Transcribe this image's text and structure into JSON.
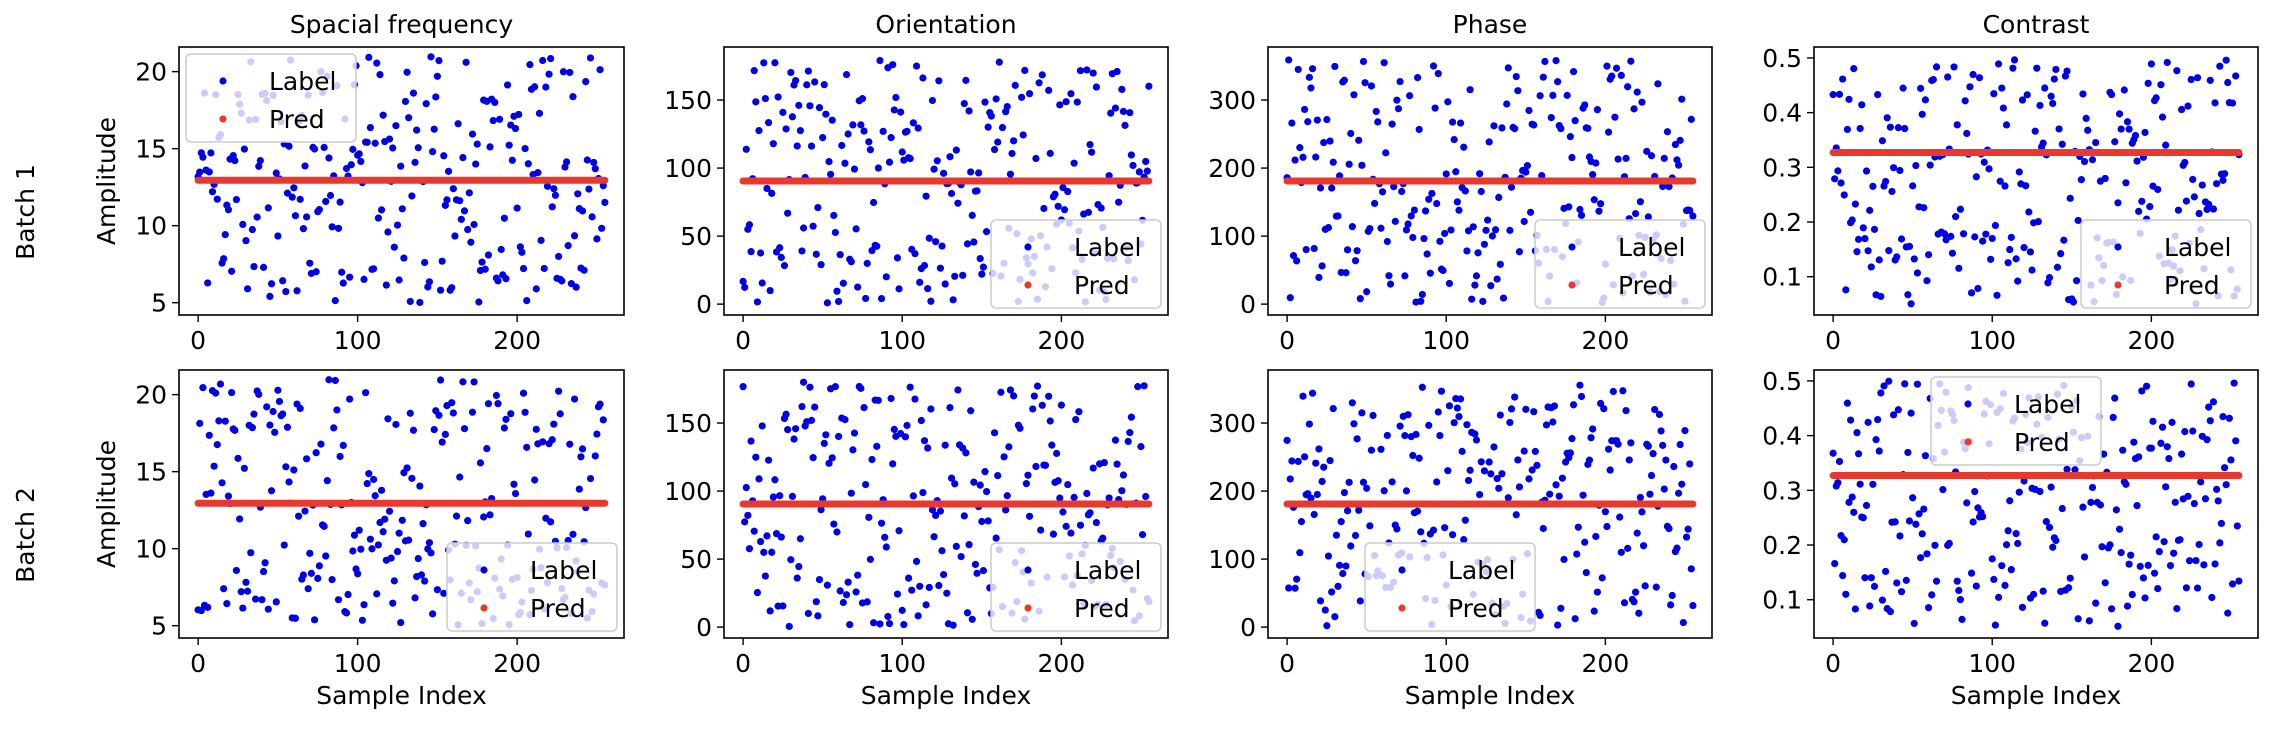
{
  "figure": {
    "row_labels": [
      "Batch 1",
      "Batch 2"
    ],
    "column_titles": [
      "Spacial frequency",
      "Orientation",
      "Phase",
      "Contrast"
    ],
    "legend_labels": [
      "Label",
      "Pred"
    ],
    "colors": {
      "label_points": "#0000e6",
      "pred_line": "#e8392e",
      "axes": "#000000"
    }
  },
  "chart_data": [
    {
      "type": "scatter",
      "row": 1,
      "col": 1,
      "title": "Spacial frequency",
      "xlabel": "",
      "ylabel": "Amplitude",
      "xlim": [
        -12,
        267
      ],
      "ylim": [
        4.2,
        21.6
      ],
      "xticks": [
        0,
        100,
        200
      ],
      "yticks": [
        5,
        10,
        15,
        20
      ],
      "pred": 12.95,
      "legend": "top-left",
      "label_range": [
        5,
        21
      ],
      "seed": 11
    },
    {
      "type": "scatter",
      "row": 1,
      "col": 2,
      "title": "Orientation",
      "xlabel": "",
      "ylabel": "",
      "xlim": [
        -12,
        267
      ],
      "ylim": [
        -8,
        189
      ],
      "xticks": [
        0,
        100,
        200
      ],
      "yticks": [
        0,
        50,
        100,
        150
      ],
      "pred": 90.5,
      "legend": "bottom-right",
      "label_range": [
        0,
        180
      ],
      "seed": 23
    },
    {
      "type": "scatter",
      "row": 1,
      "col": 3,
      "title": "Phase",
      "xlabel": "",
      "ylabel": "",
      "xlim": [
        -12,
        267
      ],
      "ylim": [
        -16,
        378
      ],
      "xticks": [
        0,
        100,
        200
      ],
      "yticks": [
        0,
        100,
        200,
        300
      ],
      "pred": 181,
      "legend": "bottom-right",
      "label_range": [
        0,
        360
      ],
      "seed": 37
    },
    {
      "type": "scatter",
      "row": 1,
      "col": 4,
      "title": "Contrast",
      "xlabel": "",
      "ylabel": "",
      "xlim": [
        -12,
        267
      ],
      "ylim": [
        0.03,
        0.52
      ],
      "xticks": [
        0,
        100,
        200
      ],
      "yticks": [
        0.1,
        0.2,
        0.3,
        0.4,
        0.5
      ],
      "pred": 0.327,
      "legend": "bottom-right",
      "label_range": [
        0.05,
        0.5
      ],
      "seed": 41
    },
    {
      "type": "scatter",
      "row": 2,
      "col": 1,
      "title": "",
      "xlabel": "Sample Index",
      "ylabel": "Amplitude",
      "xlim": [
        -12,
        267
      ],
      "ylim": [
        4.2,
        21.6
      ],
      "xticks": [
        0,
        100,
        200
      ],
      "yticks": [
        5,
        10,
        15,
        20
      ],
      "pred": 12.95,
      "legend": "bottom-right",
      "label_range": [
        5,
        21
      ],
      "seed": 53
    },
    {
      "type": "scatter",
      "row": 2,
      "col": 2,
      "title": "",
      "xlabel": "Sample Index",
      "ylabel": "",
      "xlim": [
        -12,
        267
      ],
      "ylim": [
        -8,
        189
      ],
      "xticks": [
        0,
        100,
        200
      ],
      "yticks": [
        0,
        50,
        100,
        150
      ],
      "pred": 90.5,
      "legend": "bottom-right",
      "label_range": [
        0,
        180
      ],
      "seed": 67
    },
    {
      "type": "scatter",
      "row": 2,
      "col": 3,
      "title": "",
      "xlabel": "Sample Index",
      "ylabel": "",
      "xlim": [
        -12,
        267
      ],
      "ylim": [
        -16,
        378
      ],
      "xticks": [
        0,
        100,
        200
      ],
      "yticks": [
        0,
        100,
        200,
        300
      ],
      "pred": 181,
      "legend": "bottom-center",
      "label_range": [
        0,
        360
      ],
      "seed": 71
    },
    {
      "type": "scatter",
      "row": 2,
      "col": 4,
      "title": "",
      "xlabel": "Sample Index",
      "ylabel": "",
      "xlim": [
        -12,
        267
      ],
      "ylim": [
        0.03,
        0.52
      ],
      "xticks": [
        0,
        100,
        200
      ],
      "yticks": [
        0.1,
        0.2,
        0.3,
        0.4,
        0.5
      ],
      "pred": 0.327,
      "legend": "top-center",
      "label_range": [
        0.05,
        0.5
      ],
      "seed": 83
    }
  ]
}
